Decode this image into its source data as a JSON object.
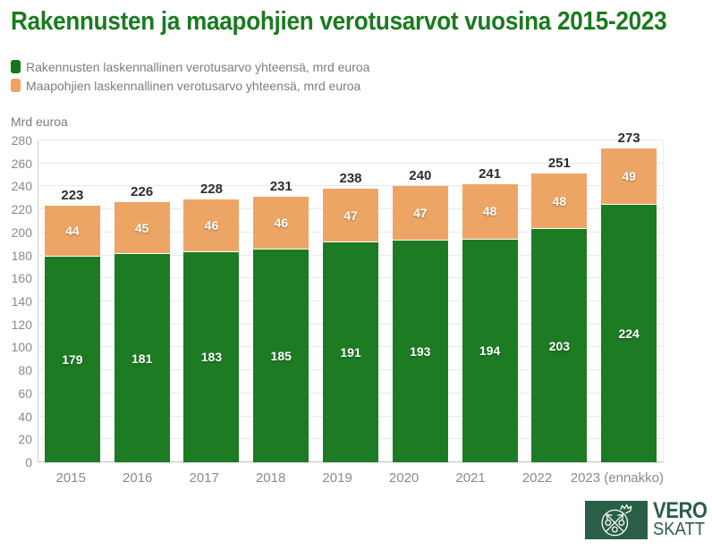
{
  "title": "Rakennusten ja maapohjien verotusarvot vuosina 2015-2023",
  "y_axis_unit": "Mrd euroa",
  "legend": {
    "items": [
      {
        "label": "Rakennusten laskennallinen verotusarvo yhteensä, mrd euroa",
        "color": "#1d7b24"
      },
      {
        "label": "Maapohjien laskennallinen verotusarvo yhteensä, mrd euroa",
        "color": "#eda566"
      }
    ]
  },
  "chart_data": {
    "type": "bar",
    "stacked": true,
    "title": "Rakennusten ja maapohjien verotusarvot vuosina 2015-2023",
    "ylabel": "Mrd euroa",
    "xlabel": "",
    "ylim": [
      0,
      280
    ],
    "ytick_step": 20,
    "grid": "horizontal",
    "legend_position": "top-left",
    "categories": [
      "2015",
      "2016",
      "2017",
      "2018",
      "2019",
      "2020",
      "2021",
      "2022",
      "2023 (ennakko)"
    ],
    "series": [
      {
        "name": "Rakennusten laskennallinen verotusarvo yhteensä, mrd euroa",
        "color": "#1d7b24",
        "values": [
          179,
          181,
          183,
          185,
          191,
          193,
          194,
          203,
          224
        ]
      },
      {
        "name": "Maapohjien laskennallinen verotusarvo yhteensä, mrd euroa",
        "color": "#eda566",
        "values": [
          44,
          45,
          46,
          46,
          47,
          47,
          48,
          48,
          49
        ]
      }
    ],
    "totals": [
      223,
      226,
      228,
      231,
      238,
      240,
      241,
      251,
      273
    ]
  },
  "logo": {
    "line1": "VERO",
    "line2": "SKATT",
    "color": "#2b5e47"
  },
  "colors": {
    "title": "#1b7a1f",
    "bar_green": "#1d7b24",
    "bar_orange": "#eda566",
    "axis_text": "#8a8a8a",
    "total_label": "#2d2d2d",
    "gridline": "#e9e9e9"
  }
}
